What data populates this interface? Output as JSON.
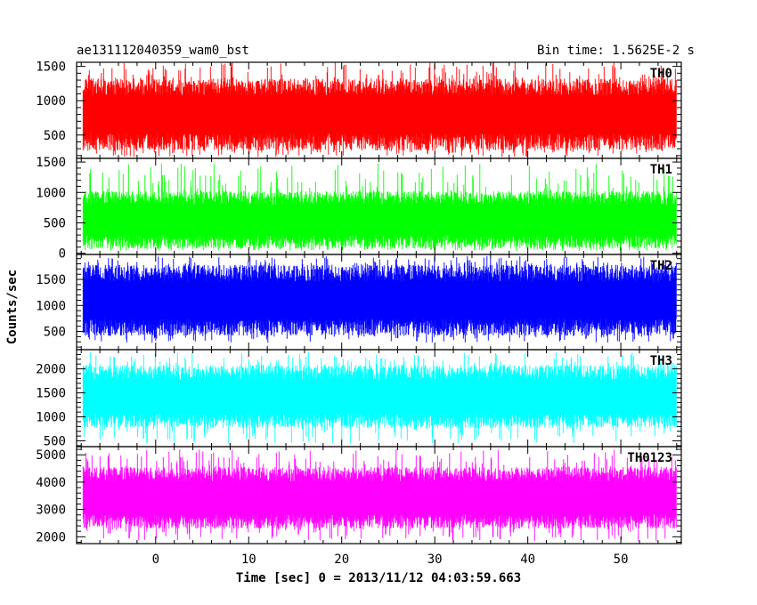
{
  "chart_data": {
    "type": "line",
    "title_left": "ae131112040359_wam0_bst",
    "title_right": "Bin time: 1.5625E-2 s",
    "xlabel": "Time [sec] 0 = 2013/11/12 04:03:59.663",
    "ylabel": "Counts/sec",
    "xlim": [
      -8.5,
      56.5
    ],
    "x_ticks": [
      0,
      10,
      20,
      30,
      40,
      50
    ],
    "data_x_range": [
      -7.8,
      56.0
    ],
    "panels": [
      {
        "name": "TH0",
        "color": "#ff0000",
        "ylim": [
          160,
          1560
        ],
        "y_ticks": [
          500,
          1000,
          1500
        ],
        "typical_range": [
          300,
          1300
        ],
        "extreme_range": [
          180,
          1560
        ]
      },
      {
        "name": "TH1",
        "color": "#00ff00",
        "ylim": [
          -20,
          1560
        ],
        "y_ticks": [
          0,
          500,
          1000,
          1500
        ],
        "typical_range": [
          100,
          1000
        ],
        "extreme_range": [
          40,
          1480
        ]
      },
      {
        "name": "TH2",
        "color": "#0000ff",
        "ylim": [
          150,
          1980
        ],
        "y_ticks": [
          500,
          1000,
          1500
        ],
        "typical_range": [
          450,
          1750
        ],
        "extreme_range": [
          280,
          1950
        ]
      },
      {
        "name": "TH3",
        "color": "#00ffff",
        "ylim": [
          380,
          2400
        ],
        "y_ticks": [
          500,
          1000,
          1500,
          2000
        ],
        "typical_range": [
          800,
          2050
        ],
        "extreme_range": [
          440,
          2350
        ]
      },
      {
        "name": "TH0123",
        "color": "#ff00ff",
        "ylim": [
          1750,
          5300
        ],
        "y_ticks": [
          2000,
          3000,
          4000,
          5000
        ],
        "typical_range": [
          2350,
          4500
        ],
        "extreme_range": [
          1850,
          5200
        ]
      }
    ]
  }
}
